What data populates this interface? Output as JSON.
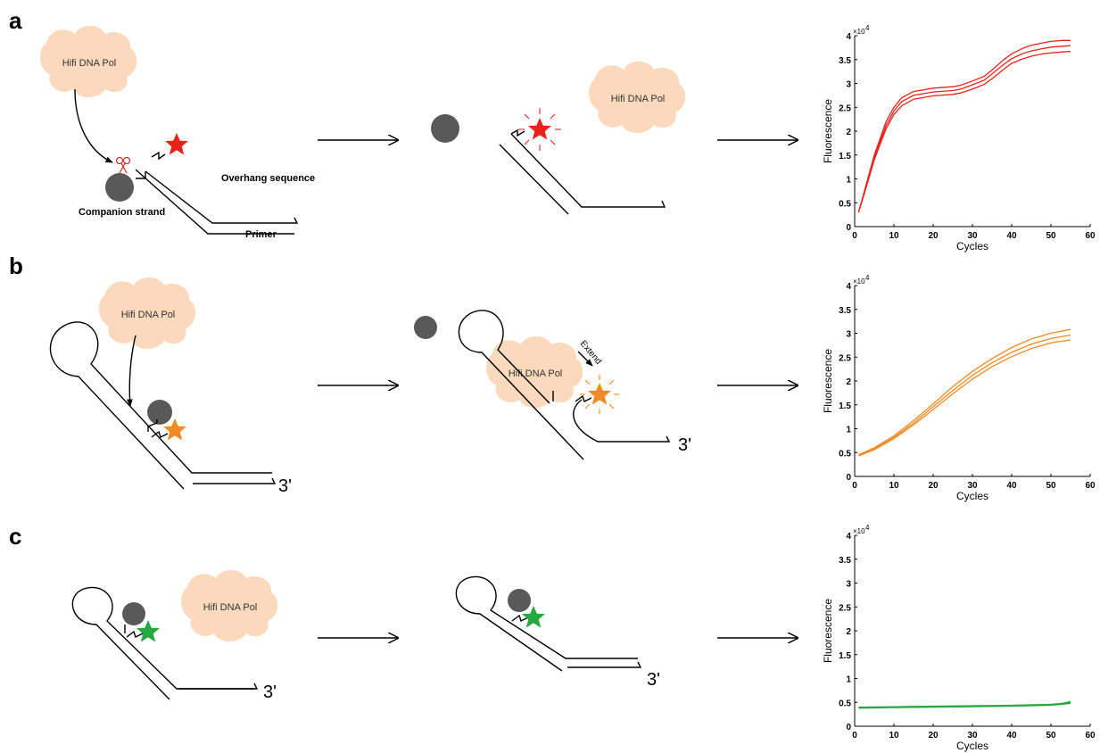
{
  "panels": [
    {
      "letter": "a",
      "polymerase_label": "Hifi DNA Pol",
      "polymerase_label_2": "Hifi DNA Pol",
      "overhang_label": "Overhang sequence",
      "companion_label": "Companion strand",
      "primer_label": "Primer",
      "star_color": "#e8231c"
    },
    {
      "letter": "b",
      "polymerase_label": "Hifi DNA Pol",
      "polymerase_label_2": "Hifi DNA Pol",
      "three_prime_1": "3'",
      "three_prime_2": "3'",
      "extend_label": "Extend",
      "star_color": "#f08a24"
    },
    {
      "letter": "c",
      "polymerase_label": "Hifi DNA Pol",
      "three_prime_1": "3'",
      "three_prime_2": "3'",
      "star_color": "#26a840"
    }
  ],
  "colors": {
    "polymerase": "#fad9bc",
    "quencher": "#595959"
  },
  "chart_data": [
    {
      "type": "line",
      "xlabel": "Cycles",
      "ylabel": "Fluorescence",
      "exponent_label": "×10",
      "exponent_power": "4",
      "xlim": [
        0,
        60
      ],
      "ylim": [
        0,
        4
      ],
      "xticks": [
        "0",
        "10",
        "20",
        "30",
        "40",
        "50",
        "60"
      ],
      "yticks": [
        "0",
        "0.5",
        "1",
        "1.5",
        "2",
        "2.5",
        "3",
        "3.5",
        "4"
      ],
      "color": "#e8231c",
      "series": [
        {
          "x": [
            1,
            3,
            5,
            8,
            10,
            12,
            15,
            20,
            25,
            27,
            30,
            33,
            35,
            38,
            40,
            43,
            45,
            48,
            50,
            53,
            55
          ],
          "y": [
            0.3,
            0.9,
            1.5,
            2.2,
            2.5,
            2.7,
            2.83,
            2.9,
            2.93,
            2.96,
            3.05,
            3.15,
            3.28,
            3.5,
            3.62,
            3.74,
            3.8,
            3.85,
            3.88,
            3.9,
            3.9
          ]
        },
        {
          "x": [
            1,
            3,
            5,
            8,
            10,
            12,
            15,
            20,
            25,
            27,
            30,
            33,
            35,
            38,
            40,
            43,
            45,
            48,
            50,
            53,
            55
          ],
          "y": [
            0.3,
            0.87,
            1.45,
            2.12,
            2.42,
            2.62,
            2.75,
            2.82,
            2.85,
            2.88,
            2.97,
            3.07,
            3.2,
            3.4,
            3.52,
            3.63,
            3.68,
            3.73,
            3.76,
            3.78,
            3.79
          ]
        },
        {
          "x": [
            1,
            3,
            5,
            8,
            10,
            12,
            15,
            20,
            25,
            27,
            30,
            33,
            35,
            38,
            40,
            43,
            45,
            48,
            50,
            53,
            55
          ],
          "y": [
            0.3,
            0.84,
            1.4,
            2.05,
            2.35,
            2.53,
            2.67,
            2.74,
            2.77,
            2.8,
            2.88,
            2.98,
            3.1,
            3.3,
            3.42,
            3.52,
            3.57,
            3.62,
            3.64,
            3.66,
            3.67
          ]
        }
      ]
    },
    {
      "type": "line",
      "xlabel": "Cycles",
      "ylabel": "Fluorescence",
      "exponent_label": "×10",
      "exponent_power": "4",
      "xlim": [
        0,
        60
      ],
      "ylim": [
        0,
        4
      ],
      "xticks": [
        "0",
        "10",
        "20",
        "30",
        "40",
        "50",
        "60"
      ],
      "yticks": [
        "0",
        "0.5",
        "1",
        "1.5",
        "2",
        "2.5",
        "3",
        "3.5",
        "4"
      ],
      "color": "#f08a24",
      "series": [
        {
          "x": [
            1,
            5,
            10,
            15,
            20,
            25,
            30,
            35,
            40,
            45,
            50,
            55
          ],
          "y": [
            0.45,
            0.6,
            0.85,
            1.17,
            1.52,
            1.88,
            2.2,
            2.47,
            2.7,
            2.88,
            3.0,
            3.08
          ]
        },
        {
          "x": [
            1,
            5,
            10,
            15,
            20,
            25,
            30,
            35,
            40,
            45,
            50,
            55
          ],
          "y": [
            0.44,
            0.58,
            0.82,
            1.12,
            1.46,
            1.8,
            2.12,
            2.38,
            2.6,
            2.77,
            2.89,
            2.96
          ]
        },
        {
          "x": [
            1,
            5,
            10,
            15,
            20,
            25,
            30,
            35,
            40,
            45,
            50,
            55
          ],
          "y": [
            0.43,
            0.56,
            0.79,
            1.08,
            1.4,
            1.73,
            2.04,
            2.3,
            2.51,
            2.68,
            2.8,
            2.86
          ]
        }
      ]
    },
    {
      "type": "line",
      "xlabel": "Cycles",
      "ylabel": "Fluorescence",
      "exponent_label": "×10",
      "exponent_power": "4",
      "xlim": [
        0,
        60
      ],
      "ylim": [
        0,
        4
      ],
      "xticks": [
        "0",
        "10",
        "20",
        "30",
        "40",
        "50",
        "60"
      ],
      "yticks": [
        "0",
        "0.5",
        "1",
        "1.5",
        "2",
        "2.5",
        "3",
        "3.5",
        "4"
      ],
      "color": "#26a840",
      "series": [
        {
          "x": [
            1,
            10,
            20,
            30,
            40,
            50,
            53,
            55
          ],
          "y": [
            0.4,
            0.41,
            0.42,
            0.43,
            0.44,
            0.46,
            0.48,
            0.52
          ]
        },
        {
          "x": [
            1,
            10,
            20,
            30,
            40,
            50,
            53,
            55
          ],
          "y": [
            0.39,
            0.4,
            0.41,
            0.42,
            0.43,
            0.45,
            0.47,
            0.5
          ]
        },
        {
          "x": [
            1,
            10,
            20,
            30,
            40,
            50,
            53,
            55
          ],
          "y": [
            0.38,
            0.39,
            0.4,
            0.41,
            0.42,
            0.44,
            0.46,
            0.48
          ]
        }
      ]
    }
  ]
}
